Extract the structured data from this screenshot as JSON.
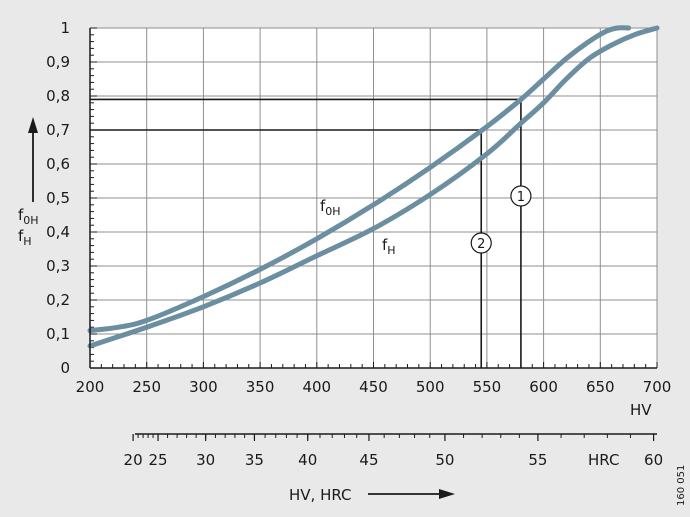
{
  "chart_data": {
    "type": "line",
    "title": "",
    "xlabel": "HV, HRC",
    "ylabel_main": "f",
    "ylabel_sub_0H": "0H",
    "ylabel_sub_H": "H",
    "x_unit_label": "HV",
    "hrc_unit_label": "HRC",
    "xlim": [
      200,
      700
    ],
    "ylim": [
      0,
      1
    ],
    "grid": true,
    "x_ticks": [
      200,
      250,
      300,
      350,
      400,
      450,
      500,
      550,
      600,
      650,
      700
    ],
    "y_ticks": [
      "0",
      "0,1",
      "0,2",
      "0,3",
      "0,4",
      "0,5",
      "0,6",
      "0,7",
      "0,8",
      "0,9",
      "1"
    ],
    "hrc_ticks": [
      {
        "label": "20",
        "hv": 238
      },
      {
        "label": "25",
        "hv": 260
      },
      {
        "label": "30",
        "hv": 302
      },
      {
        "label": "35",
        "hv": 345
      },
      {
        "label": "40",
        "hv": 392
      },
      {
        "label": "45",
        "hv": 446
      },
      {
        "label": "50",
        "hv": 513
      },
      {
        "label": "55",
        "hv": 595
      },
      {
        "label": "60",
        "hv": 697
      }
    ],
    "series": [
      {
        "name": "f",
        "sub": "0H",
        "x": [
          200,
          225,
          250,
          300,
          350,
          400,
          450,
          500,
          550,
          580,
          600,
          620,
          640,
          655,
          665,
          675
        ],
        "y": [
          0.11,
          0.12,
          0.14,
          0.21,
          0.29,
          0.38,
          0.48,
          0.59,
          0.71,
          0.79,
          0.85,
          0.91,
          0.96,
          0.99,
          1.0,
          1.0
        ]
      },
      {
        "name": "f",
        "sub": "H",
        "x": [
          200,
          250,
          300,
          350,
          400,
          450,
          500,
          550,
          580,
          600,
          620,
          640,
          660,
          680,
          700
        ],
        "y": [
          0.065,
          0.12,
          0.18,
          0.25,
          0.33,
          0.41,
          0.51,
          0.63,
          0.72,
          0.78,
          0.85,
          0.91,
          0.95,
          0.98,
          1.0
        ]
      }
    ],
    "annotations": [
      {
        "label": "1",
        "hv": 580,
        "y": 0.79
      },
      {
        "label": "2",
        "hv": 545,
        "y": 0.7
      }
    ],
    "figure_number": "160 051",
    "colors": {
      "curve": "#6b8ea0",
      "grid": "#8f8f8f",
      "axis": "#1a1a1a",
      "background": "#e9e9e9",
      "plot": "#ffffff"
    }
  }
}
